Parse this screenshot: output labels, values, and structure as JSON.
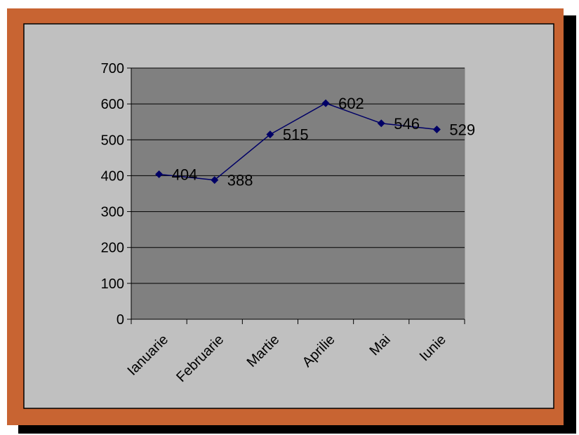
{
  "chart_data": {
    "type": "line",
    "title": "",
    "xlabel": "",
    "ylabel": "",
    "categories": [
      "Ianuarie",
      "Februarie",
      "Martie",
      "Aprilie",
      "Mai",
      "Iunie"
    ],
    "series": [
      {
        "values": [
          404,
          388,
          515,
          602,
          546,
          529
        ]
      }
    ],
    "data_labels": [
      "404",
      "388",
      "515",
      "602",
      "546",
      "529"
    ],
    "ylim": [
      0,
      700
    ],
    "yticks": [
      0,
      100,
      200,
      300,
      400,
      500,
      600,
      700
    ],
    "ytick_labels": [
      "0",
      "100",
      "200",
      "300",
      "400",
      "500",
      "600",
      "700"
    ],
    "grid": true,
    "legend": "none",
    "marker": "diamond"
  },
  "colors": {
    "frame_shadow": "#000000",
    "frame_border": "#C86432",
    "chart_area": "#C0C0C0",
    "plot_area": "#808080",
    "gridline": "#000000",
    "series_line": "#000066",
    "marker": "#000066"
  }
}
